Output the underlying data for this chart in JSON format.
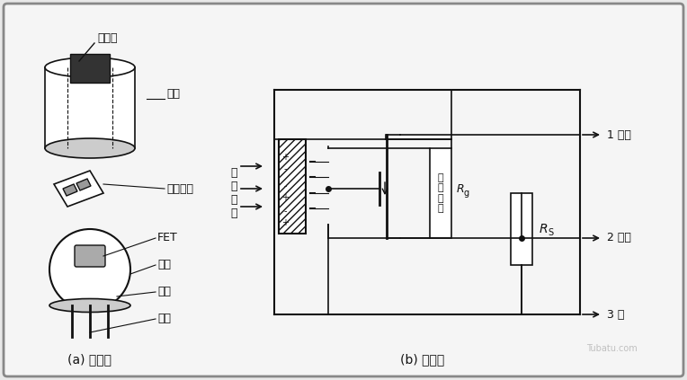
{
  "bg_color": "#e8e8e8",
  "inner_bg": "#f5f5f5",
  "border_color": "#888888",
  "line_color": "#111111",
  "title_a": "(a) 结构图",
  "title_b": "(b) 电路图",
  "label_guangpian": "滤光片",
  "label_guanmao": "管帽",
  "label_minjian": "敏感元件",
  "label_FET": "FET",
  "label_zuanzuo": "管座",
  "label_gaozhu": "高阻",
  "label_yinjiao": "引脚",
  "label_hongwai": "红\n外\n辐\n射",
  "label_drain": "1 漏级",
  "label_source": "2 源级",
  "label_ground": "3 地",
  "label_Rg": "R g",
  "label_RS": "R S",
  "label_gaozhi": "高\n值\n电\n阻",
  "watermark": "Tubatu.com"
}
